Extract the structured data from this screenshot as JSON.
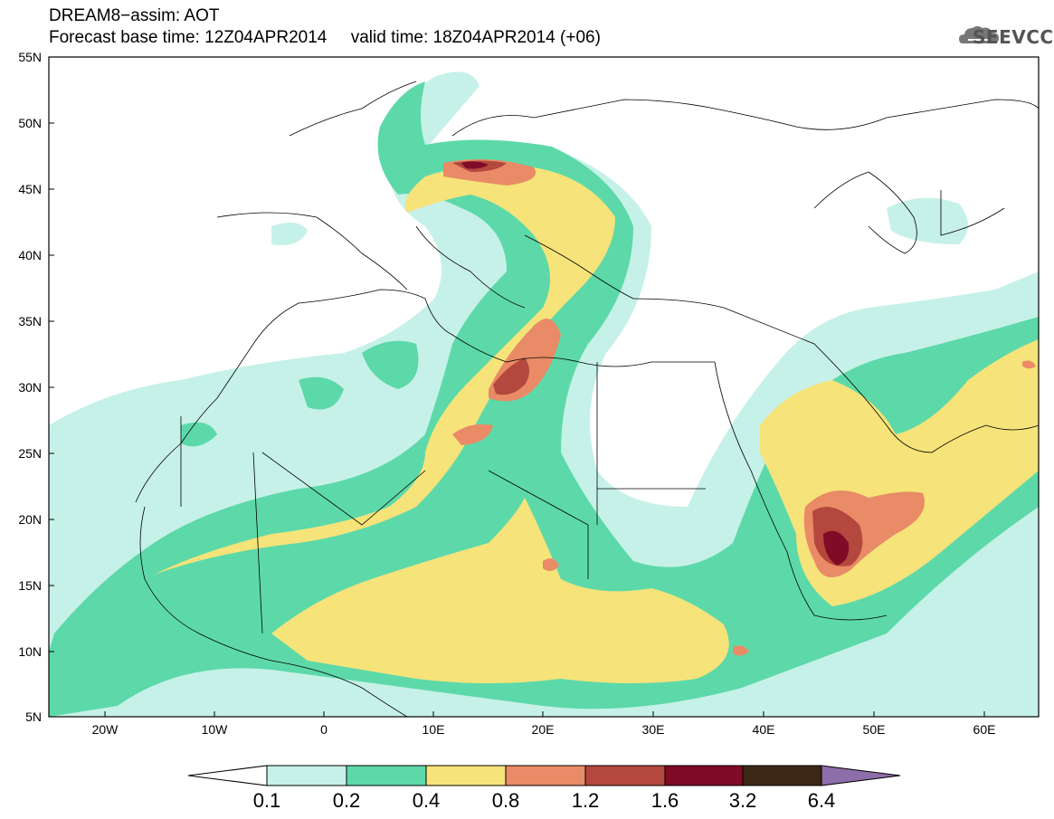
{
  "header": {
    "line1": "DREAM8−assim: AOT",
    "line2": "Forecast base time: 12Z04APR2014     valid time: 18Z04APR2014 (+06)"
  },
  "logo": {
    "text": "SEEVCCC",
    "icon": "cloud-icon"
  },
  "map": {
    "lat_labels": [
      "55N",
      "50N",
      "45N",
      "40N",
      "35N",
      "30N",
      "25N",
      "20N",
      "15N",
      "10N",
      "5N"
    ],
    "lon_labels": [
      "20W",
      "10W",
      "0",
      "10E",
      "20E",
      "30E",
      "40E",
      "50E",
      "60E"
    ]
  },
  "colorbar": {
    "labels": [
      "0.1",
      "0.2",
      "0.4",
      "0.8",
      "1.2",
      "1.6",
      "3.2",
      "6.4"
    ],
    "colors": [
      "#ffffff",
      "#c6f1e8",
      "#5dd9a9",
      "#f6e37a",
      "#e98b66",
      "#b4483e",
      "#800b27",
      "#3e2716",
      "#8e6ea8"
    ]
  }
}
